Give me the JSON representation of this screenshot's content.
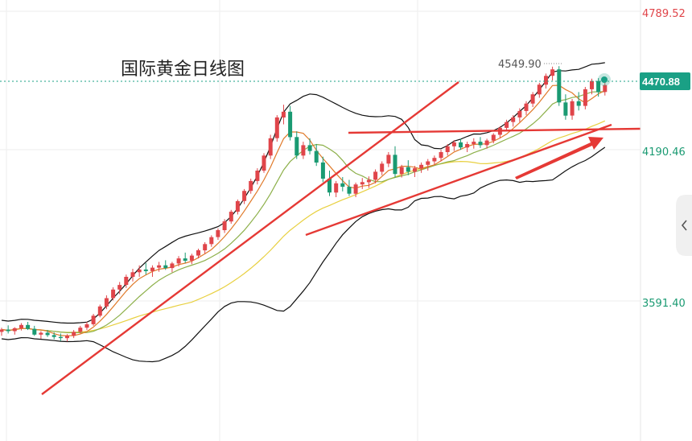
{
  "chart_data": {
    "type": "candlestick",
    "title": "国际黄金日线图",
    "y_axis_labels": [
      "4789.52",
      "4190.46",
      "3591.40"
    ],
    "y_axis_values": [
      4789.52,
      4190.46,
      3591.4
    ],
    "current_price_label": "4470.88",
    "current_price": 4470.88,
    "peak_annotation": "4549.90",
    "peak_value": 4549.9,
    "ylim": [
      3300,
      4800
    ],
    "grid": true,
    "colors": {
      "up": "#e0454a",
      "down": "#1a9a72",
      "bollinger": "#111111",
      "ma_short": "#e07a2a",
      "ma_mid": "#8db04a",
      "ma_long": "#e8d040",
      "trendline": "#e53935",
      "price_tag": "#1aa085",
      "axis_top": "#e0454a"
    },
    "candles": [
      [
        3402,
        3420,
        3385,
        3412
      ],
      [
        3412,
        3430,
        3395,
        3405
      ],
      [
        3405,
        3422,
        3390,
        3418
      ],
      [
        3418,
        3440,
        3408,
        3432
      ],
      [
        3432,
        3445,
        3410,
        3415
      ],
      [
        3415,
        3428,
        3385,
        3390
      ],
      [
        3390,
        3405,
        3372,
        3398
      ],
      [
        3398,
        3410,
        3380,
        3388
      ],
      [
        3388,
        3400,
        3370,
        3380
      ],
      [
        3380,
        3395,
        3362,
        3375
      ],
      [
        3375,
        3392,
        3360,
        3385
      ],
      [
        3385,
        3410,
        3375,
        3402
      ],
      [
        3402,
        3428,
        3395,
        3420
      ],
      [
        3420,
        3445,
        3410,
        3435
      ],
      [
        3435,
        3480,
        3428,
        3472
      ],
      [
        3472,
        3520,
        3465,
        3512
      ],
      [
        3512,
        3560,
        3500,
        3548
      ],
      [
        3548,
        3595,
        3538,
        3585
      ],
      [
        3585,
        3618,
        3565,
        3605
      ],
      [
        3605,
        3650,
        3592,
        3640
      ],
      [
        3640,
        3675,
        3620,
        3660
      ],
      [
        3660,
        3690,
        3640,
        3672
      ],
      [
        3672,
        3700,
        3650,
        3665
      ],
      [
        3665,
        3690,
        3640,
        3680
      ],
      [
        3680,
        3705,
        3662,
        3690
      ],
      [
        3690,
        3712,
        3670,
        3678
      ],
      [
        3678,
        3705,
        3660,
        3698
      ],
      [
        3698,
        3730,
        3685,
        3720
      ],
      [
        3720,
        3745,
        3700,
        3710
      ],
      [
        3710,
        3740,
        3695,
        3732
      ],
      [
        3732,
        3762,
        3720,
        3755
      ],
      [
        3755,
        3790,
        3740,
        3782
      ],
      [
        3782,
        3820,
        3770,
        3812
      ],
      [
        3812,
        3850,
        3800,
        3842
      ],
      [
        3842,
        3890,
        3830,
        3880
      ],
      [
        3880,
        3930,
        3870,
        3922
      ],
      [
        3922,
        3975,
        3910,
        3968
      ],
      [
        3968,
        4020,
        3955,
        4012
      ],
      [
        4012,
        4065,
        4000,
        4055
      ],
      [
        4055,
        4110,
        4040,
        4100
      ],
      [
        4100,
        4175,
        4090,
        4165
      ],
      [
        4165,
        4255,
        4150,
        4240
      ],
      [
        4240,
        4340,
        4225,
        4330
      ],
      [
        4330,
        4385,
        4300,
        4355
      ],
      [
        4355,
        4380,
        4230,
        4245
      ],
      [
        4245,
        4270,
        4150,
        4165
      ],
      [
        4165,
        4225,
        4150,
        4210
      ],
      [
        4210,
        4240,
        4170,
        4185
      ],
      [
        4185,
        4215,
        4120,
        4135
      ],
      [
        4135,
        4160,
        4050,
        4065
      ],
      [
        4065,
        4100,
        3990,
        4005
      ],
      [
        4005,
        4055,
        3985,
        4045
      ],
      [
        4045,
        4072,
        4010,
        4030
      ],
      [
        4030,
        4060,
        3990,
        4000
      ],
      [
        4000,
        4048,
        3985,
        4040
      ],
      [
        4040,
        4068,
        4020,
        4050
      ],
      [
        4050,
        4075,
        4025,
        4060
      ],
      [
        4060,
        4105,
        4045,
        4095
      ],
      [
        4095,
        4140,
        4080,
        4130
      ],
      [
        4130,
        4180,
        4115,
        4168
      ],
      [
        4168,
        4205,
        4070,
        4085
      ],
      [
        4085,
        4125,
        4070,
        4115
      ],
      [
        4115,
        4145,
        4080,
        4095
      ],
      [
        4095,
        4120,
        4072,
        4110
      ],
      [
        4110,
        4135,
        4090,
        4125
      ],
      [
        4125,
        4150,
        4100,
        4140
      ],
      [
        4140,
        4165,
        4125,
        4155
      ],
      [
        4155,
        4190,
        4140,
        4180
      ],
      [
        4180,
        4215,
        4165,
        4205
      ],
      [
        4205,
        4232,
        4185,
        4222
      ],
      [
        4222,
        4238,
        4190,
        4200
      ],
      [
        4200,
        4225,
        4180,
        4215
      ],
      [
        4215,
        4240,
        4195,
        4225
      ],
      [
        4225,
        4245,
        4198,
        4210
      ],
      [
        4210,
        4238,
        4195,
        4230
      ],
      [
        4230,
        4262,
        4218,
        4255
      ],
      [
        4255,
        4292,
        4240,
        4285
      ],
      [
        4285,
        4320,
        4270,
        4310
      ],
      [
        4310,
        4340,
        4290,
        4330
      ],
      [
        4330,
        4370,
        4310,
        4358
      ],
      [
        4358,
        4400,
        4340,
        4390
      ],
      [
        4390,
        4440,
        4375,
        4430
      ],
      [
        4430,
        4480,
        4415,
        4472
      ],
      [
        4472,
        4520,
        4455,
        4510
      ],
      [
        4510,
        4550,
        4490,
        4538
      ],
      [
        4538,
        4552,
        4380,
        4395
      ],
      [
        4395,
        4430,
        4320,
        4338
      ],
      [
        4338,
        4410,
        4320,
        4400
      ],
      [
        4400,
        4440,
        4360,
        4380
      ],
      [
        4380,
        4462,
        4365,
        4452
      ],
      [
        4452,
        4498,
        4430,
        4488
      ],
      [
        4488,
        4500,
        4420,
        4440
      ],
      [
        4440,
        4484,
        4425,
        4470
      ]
    ]
  }
}
